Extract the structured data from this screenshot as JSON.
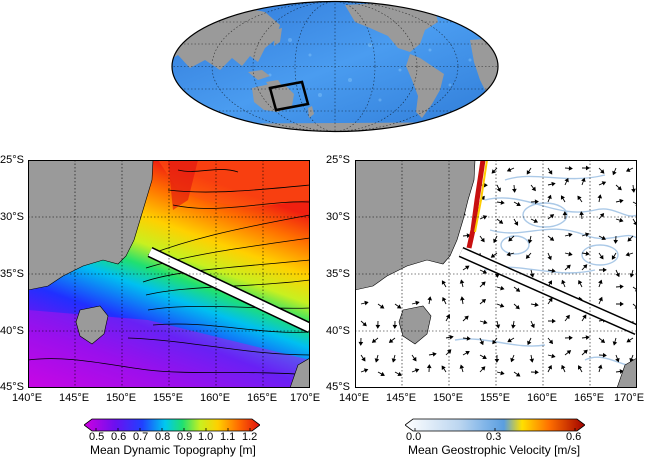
{
  "left_panel": {
    "lat_labels": [
      "25°S",
      "30°S",
      "35°S",
      "40°S",
      "45°S"
    ],
    "lon_labels": [
      "140°E",
      "145°E",
      "150°E",
      "155°E",
      "160°E",
      "165°E",
      "170°E"
    ]
  },
  "right_panel": {
    "lat_labels": [
      "25°S",
      "30°S",
      "35°S",
      "40°S",
      "45°S"
    ],
    "lon_labels": [
      "140°E",
      "145°E",
      "150°E",
      "155°E",
      "160°E",
      "165°E",
      "170°E"
    ]
  },
  "colorbar_left": {
    "title": "Mean Dynamic Topography [m]",
    "ticks": [
      "0.5",
      "0.6",
      "0.7",
      "0.8",
      "0.9",
      "1.0",
      "1.1",
      "1.2"
    ],
    "min": 0.45,
    "max": 1.2
  },
  "colorbar_right": {
    "title": "Mean Geostrophic Velocity [m/s]",
    "ticks": [
      "0.0",
      "0.3",
      "0.6"
    ],
    "min": 0.0,
    "max": 0.6
  },
  "colors": {
    "land": "#9a9a9a",
    "ocean_globe": "#3f8fe6",
    "section_line": "#ffffff",
    "contour": "#000000"
  }
}
